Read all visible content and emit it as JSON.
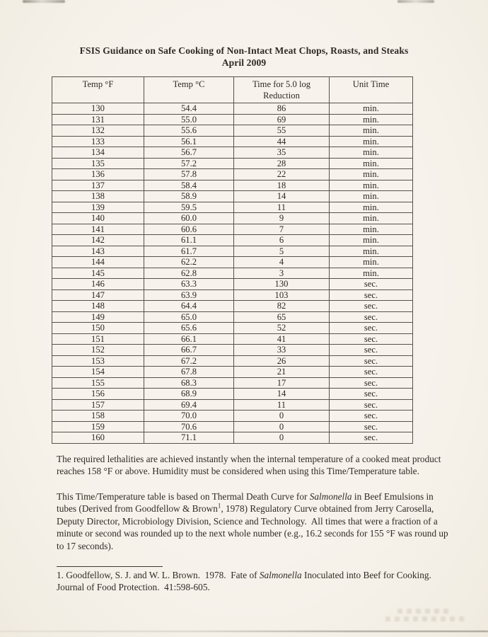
{
  "document": {
    "title_line1": "FSIS Guidance on Safe Cooking of Non-Intact Meat Chops, Roasts, and Steaks",
    "title_line2": "April 2009",
    "table": {
      "headers": [
        "Temp °F",
        "Temp °C",
        "Time for 5.0 log Reduction",
        "Unit Time"
      ],
      "rows": [
        [
          "130",
          "54.4",
          "86",
          "min."
        ],
        [
          "131",
          "55.0",
          "69",
          "min."
        ],
        [
          "132",
          "55.6",
          "55",
          "min."
        ],
        [
          "133",
          "56.1",
          "44",
          "min."
        ],
        [
          "134",
          "56.7",
          "35",
          "min."
        ],
        [
          "135",
          "57.2",
          "28",
          "min."
        ],
        [
          "136",
          "57.8",
          "22",
          "min."
        ],
        [
          "137",
          "58.4",
          "18",
          "min."
        ],
        [
          "138",
          "58.9",
          "14",
          "min."
        ],
        [
          "139",
          "59.5",
          "11",
          "min."
        ],
        [
          "140",
          "60.0",
          "9",
          "min."
        ],
        [
          "141",
          "60.6",
          "7",
          "min."
        ],
        [
          "142",
          "61.1",
          "6",
          "min."
        ],
        [
          "143",
          "61.7",
          "5",
          "min."
        ],
        [
          "144",
          "62.2",
          "4",
          "min."
        ],
        [
          "145",
          "62.8",
          "3",
          "min."
        ],
        [
          "146",
          "63.3",
          "130",
          "sec."
        ],
        [
          "147",
          "63.9",
          "103",
          "sec."
        ],
        [
          "148",
          "64.4",
          "82",
          "sec."
        ],
        [
          "149",
          "65.0",
          "65",
          "sec."
        ],
        [
          "150",
          "65.6",
          "52",
          "sec."
        ],
        [
          "151",
          "66.1",
          "41",
          "sec."
        ],
        [
          "152",
          "66.7",
          "33",
          "sec."
        ],
        [
          "153",
          "67.2",
          "26",
          "sec."
        ],
        [
          "154",
          "67.8",
          "21",
          "sec."
        ],
        [
          "155",
          "68.3",
          "17",
          "sec."
        ],
        [
          "156",
          "68.9",
          "14",
          "sec."
        ],
        [
          "157",
          "69.4",
          "11",
          "sec."
        ],
        [
          "158",
          "70.0",
          "0",
          "sec."
        ],
        [
          "159",
          "70.6",
          "0",
          "sec."
        ],
        [
          "160",
          "71.1",
          "0",
          "sec."
        ]
      ]
    },
    "paragraph1": "The required lethalities are achieved instantly when the internal temperature of a cooked meat product reaches 158 °F or above. Humidity must be considered when using this Time/Temperature table.",
    "paragraph2": {
      "part1": "This Time/Temperature table is based on Thermal Death Curve for ",
      "italic1": "Salmonella",
      "part2": " in Beef Emulsions in tubes (Derived from Goodfellow & Brown",
      "sup": "1",
      "part3": ", 1978) Regulatory Curve obtained from Jerry Carosella, Deputy Director, Microbiology Division, Science and Technology.  All times that were a fraction of a minute or second was rounded up to the next whole number (e.g., 16.2 seconds for 155 °F was round up to 17 seconds)."
    },
    "footnote": {
      "part1": "1. Goodfellow, S. J. and W. L. Brown.  1978.  Fate of ",
      "italic": "Salmonella",
      "part2": " Inoculated into Beef for Cooking.  Journal of Food Protection.  41:598-605."
    }
  }
}
